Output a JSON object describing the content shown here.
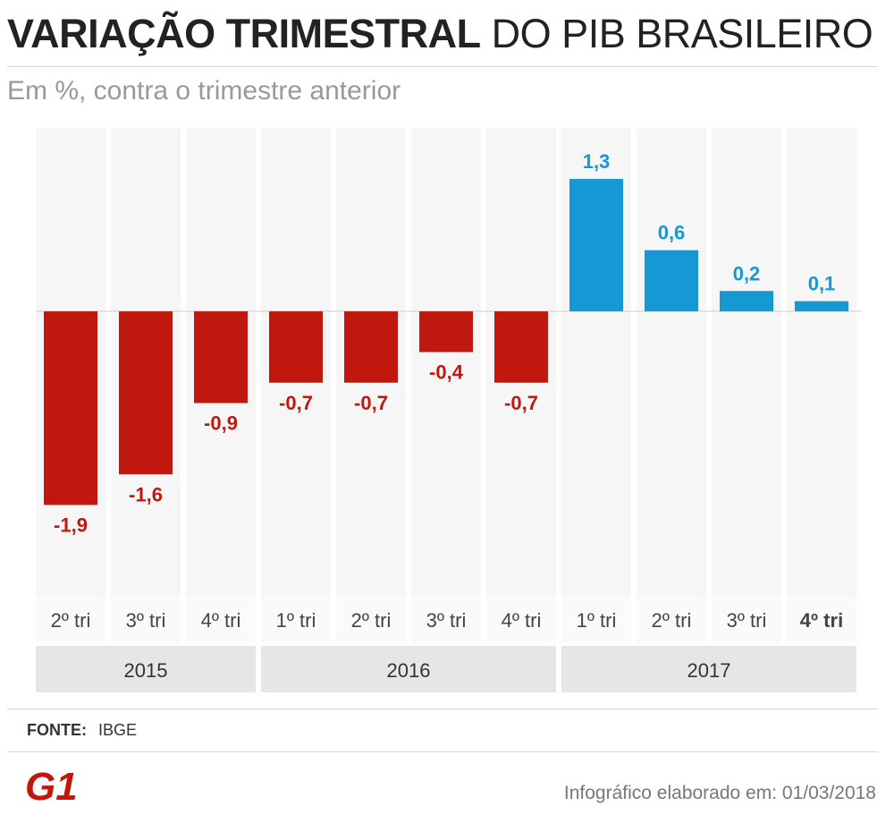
{
  "title": {
    "bold": "VARIAÇÃO TRIMESTRAL",
    "light": "DO PIB BRASILEIRO"
  },
  "subtitle": "Em %, contra o trimestre anterior",
  "chart_data": {
    "type": "bar",
    "categories": [
      "2º tri",
      "3º tri",
      "4º tri",
      "1º tri",
      "2º tri",
      "3º tri",
      "4º tri",
      "1º tri",
      "2º tri",
      "3º tri",
      "4º tri"
    ],
    "values": [
      -1.9,
      -1.6,
      -0.9,
      -0.7,
      -0.7,
      -0.4,
      -0.7,
      1.3,
      0.6,
      0.2,
      0.1
    ],
    "value_labels": [
      "-1,9",
      "-1,6",
      "-0,9",
      "-0,7",
      "-0,7",
      "-0,4",
      "-0,7",
      "1,3",
      "0,6",
      "0,2",
      "0,1"
    ],
    "years": [
      {
        "label": "2015",
        "span": 3
      },
      {
        "label": "2016",
        "span": 4
      },
      {
        "label": "2017",
        "span": 4
      }
    ],
    "highlight_index": 10,
    "ylim": [
      -2.8,
      1.8
    ],
    "colors": {
      "negative": "#c0180e",
      "positive": "#1598d3",
      "column_bg": "#f6f6f6",
      "year_bg": "#e6e6e6"
    }
  },
  "source": {
    "label": "FONTE:",
    "value": "IBGE"
  },
  "logo_text": "G1",
  "credit": "Infográfico elaborado em: 01/03/2018"
}
